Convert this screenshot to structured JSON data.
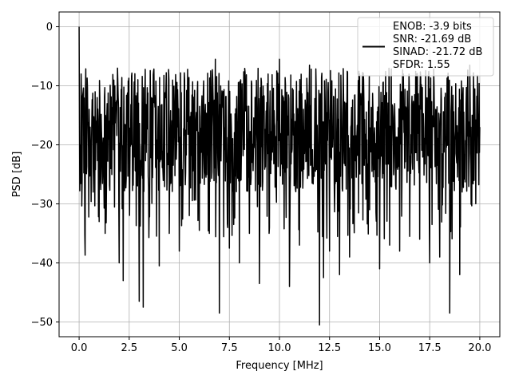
{
  "chart_data": {
    "type": "line",
    "title": "",
    "xlabel": "Frequency [MHz]",
    "ylabel": "PSD [dB]",
    "xlim": [
      -1.0,
      21.0
    ],
    "ylim": [
      -52.5,
      2.5
    ],
    "xticks": [
      0.0,
      2.5,
      5.0,
      7.5,
      10.0,
      12.5,
      15.0,
      17.5,
      20.0
    ],
    "xtick_labels": [
      "0.0",
      "2.5",
      "5.0",
      "7.5",
      "10.0",
      "12.5",
      "15.0",
      "17.5",
      "20.0"
    ],
    "yticks": [
      0,
      -10,
      -20,
      -30,
      -40,
      -50
    ],
    "ytick_labels": [
      "0",
      "−10",
      "−20",
      "−30",
      "−40",
      "−50"
    ],
    "grid": true,
    "legend_position": "top-right",
    "legend_lines": [
      "ENOB: -3.9 bits",
      "SNR: -21.69 dB",
      "SINAD: -21.72 dB",
      "SFDR: 1.55"
    ],
    "series": [
      {
        "color": "#000000",
        "x": [
          0.0,
          0.05,
          0.1,
          0.15,
          0.2,
          0.3,
          0.5,
          0.7,
          1.0,
          1.3,
          1.5,
          2.0,
          2.2,
          2.5,
          3.0,
          3.2,
          3.5,
          4.0,
          4.5,
          5.0,
          5.5,
          6.0,
          6.5,
          6.8,
          7.0,
          7.5,
          8.0,
          8.5,
          9.0,
          9.5,
          10.0,
          10.5,
          11.0,
          11.5,
          12.0,
          12.2,
          12.5,
          13.0,
          13.5,
          14.0,
          14.5,
          15.0,
          15.5,
          16.0,
          16.5,
          17.0,
          17.5,
          18.0,
          18.5,
          19.0,
          19.5,
          20.0
        ],
        "y": [
          0.0,
          -20.0,
          -8.0,
          -26.0,
          -11.0,
          -38.7,
          -14.0,
          -28.0,
          -33.0,
          -35.0,
          -16.0,
          -40.0,
          -43.0,
          -25.0,
          -46.5,
          -47.5,
          -30.0,
          -40.5,
          -35.0,
          -38.0,
          -32.0,
          -34.5,
          -35.0,
          -5.5,
          -48.5,
          -37.5,
          -40.0,
          -35.0,
          -43.5,
          -34.0,
          -5.5,
          -44.0,
          -37.0,
          -6.5,
          -50.5,
          -42.5,
          -38.0,
          -42.0,
          -39.0,
          -8.0,
          -31.0,
          -41.0,
          -37.0,
          -38.0,
          -35.5,
          -36.0,
          -40.0,
          -39.0,
          -48.5,
          -42.0,
          -6.5,
          -17.0
        ]
      }
    ]
  }
}
